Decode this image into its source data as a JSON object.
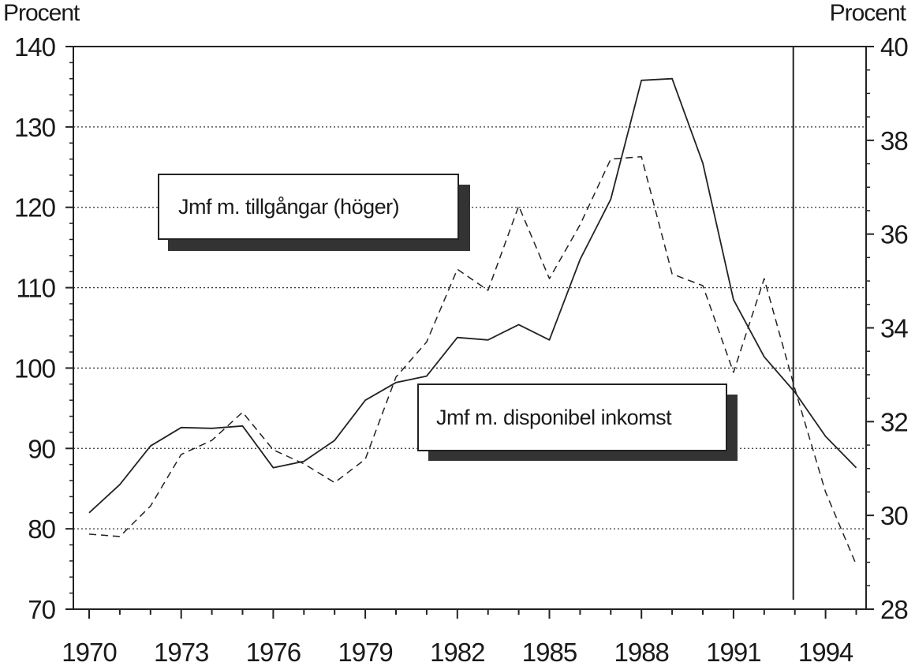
{
  "left_unit_label": "Procent",
  "right_unit_label": "Procent",
  "legend": {
    "assets_label": "Jmf m. tillgångar (höger)",
    "income_label": "Jmf m. disponibel inkomst"
  },
  "chart_data": {
    "type": "line",
    "x": [
      1970,
      1971,
      1972,
      1973,
      1974,
      1975,
      1976,
      1977,
      1978,
      1979,
      1980,
      1981,
      1982,
      1983,
      1984,
      1985,
      1986,
      1987,
      1988,
      1989,
      1990,
      1991,
      1992,
      1993,
      1994,
      1995
    ],
    "x_ticks": [
      "1970",
      "1973",
      "1976",
      "1979",
      "1982",
      "1985",
      "1988",
      "1991",
      "1994"
    ],
    "y_left": {
      "ylim": [
        70,
        140
      ],
      "ticks": [
        "70",
        "80",
        "90",
        "100",
        "110",
        "120",
        "130",
        "140"
      ]
    },
    "y_right": {
      "ylim": [
        28,
        40
      ],
      "ticks": [
        "28",
        "30",
        "32",
        "34",
        "36",
        "38",
        "40"
      ]
    },
    "series": [
      {
        "name": "Jmf m. disponibel inkomst",
        "axis": "left",
        "style": "solid",
        "values": [
          82,
          85.5,
          90.3,
          92.6,
          92.5,
          92.8,
          87.6,
          88.4,
          91,
          96,
          98.2,
          99,
          103.8,
          103.5,
          105.4,
          103.5,
          113.5,
          121,
          135.8,
          136,
          125.5,
          108.5,
          101.4,
          97,
          91.5,
          87.6
        ]
      },
      {
        "name": "Jmf m. tillgångar (höger)",
        "axis": "right",
        "style": "dashed",
        "values": [
          29.6,
          29.55,
          30.2,
          31.3,
          31.6,
          32.2,
          31.4,
          31.1,
          30.7,
          31.2,
          32.95,
          33.7,
          35.25,
          34.8,
          36.6,
          35.05,
          36.2,
          37.6,
          37.65,
          35.15,
          34.9,
          33.05,
          35.05,
          32.7,
          30.5,
          28.95
        ]
      }
    ],
    "grid": true,
    "forecast_marker_year": 1993
  }
}
